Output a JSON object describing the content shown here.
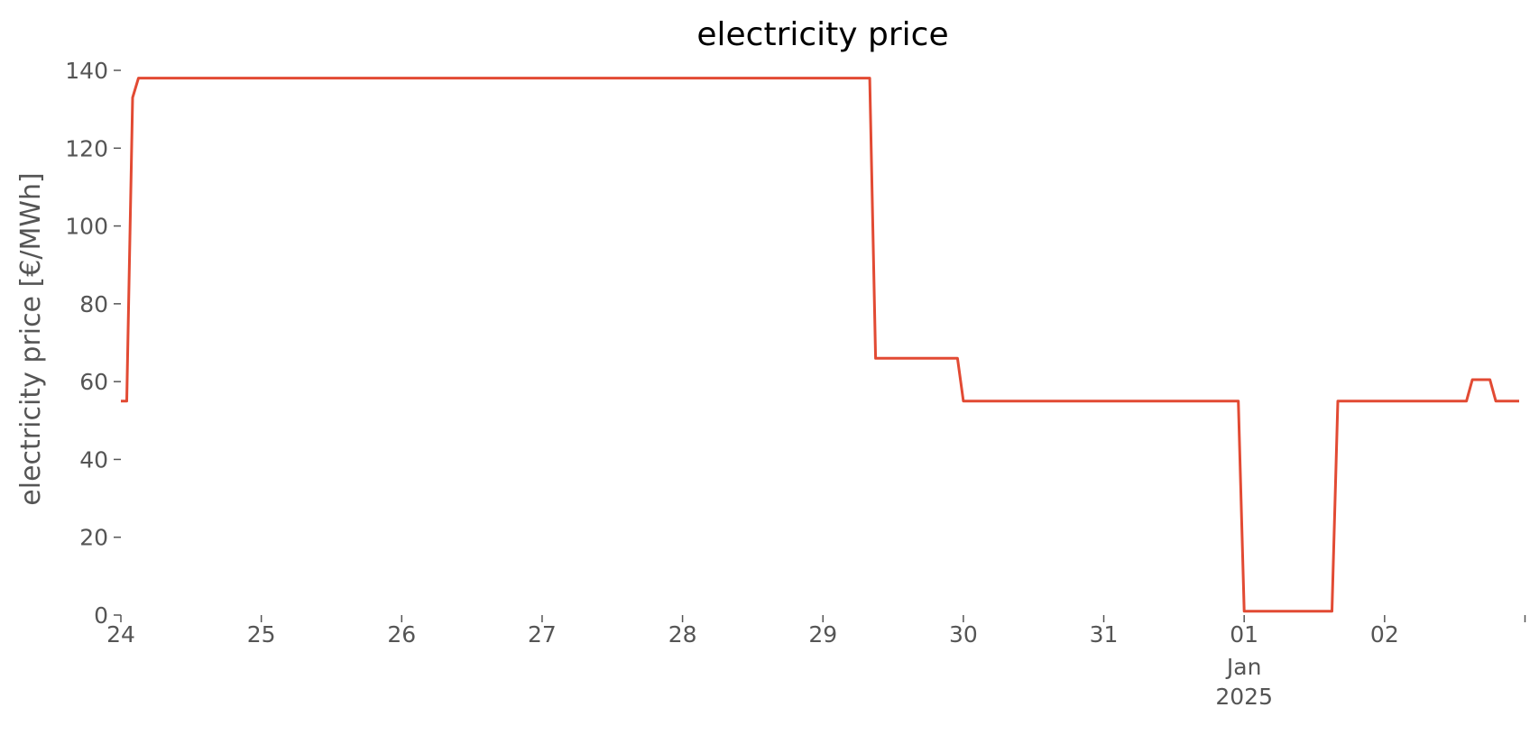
{
  "chart_data": {
    "type": "line",
    "title": "electricity price",
    "xlabel": "",
    "ylabel": "electricity price [€/MWh]",
    "ylim": [
      0,
      140
    ],
    "xlim": [
      "2024-12-24T00:00",
      "2025-01-02T23:00"
    ],
    "yticks": [
      0,
      20,
      40,
      60,
      80,
      100,
      120,
      140
    ],
    "xticks": [
      {
        "x": "2024-12-24T00:00",
        "label": "24"
      },
      {
        "x": "2024-12-25T00:00",
        "label": "25"
      },
      {
        "x": "2024-12-26T00:00",
        "label": "26"
      },
      {
        "x": "2024-12-27T00:00",
        "label": "27"
      },
      {
        "x": "2024-12-28T00:00",
        "label": "28"
      },
      {
        "x": "2024-12-29T00:00",
        "label": "29"
      },
      {
        "x": "2024-12-30T00:00",
        "label": "30"
      },
      {
        "x": "2024-12-31T00:00",
        "label": "31"
      },
      {
        "x": "2025-01-01T00:00",
        "label": "01",
        "sub1": "Jan",
        "sub2": "2025"
      },
      {
        "x": "2025-01-02T00:00",
        "label": "02"
      },
      {
        "x": "2025-01-03T00:00",
        "label": ""
      }
    ],
    "grid": false,
    "color": "#E24A33",
    "series": [
      {
        "x": [
          "2024-12-24T00:00",
          "2024-12-24T01:00",
          "2024-12-24T02:00",
          "2024-12-24T03:00",
          "2024-12-29T08:00",
          "2024-12-29T09:00",
          "2024-12-29T23:00",
          "2024-12-30T00:00",
          "2024-12-31T23:00",
          "2025-01-01T00:00",
          "2025-01-01T15:00",
          "2025-01-01T16:00",
          "2025-01-02T14:00",
          "2025-01-02T15:00",
          "2025-01-02T18:00",
          "2025-01-02T19:00",
          "2025-01-02T23:00"
        ],
        "y": [
          55,
          55,
          133,
          138,
          138,
          66,
          66,
          55,
          55,
          1,
          1,
          55,
          55,
          60.5,
          60.5,
          55,
          55
        ]
      }
    ]
  }
}
